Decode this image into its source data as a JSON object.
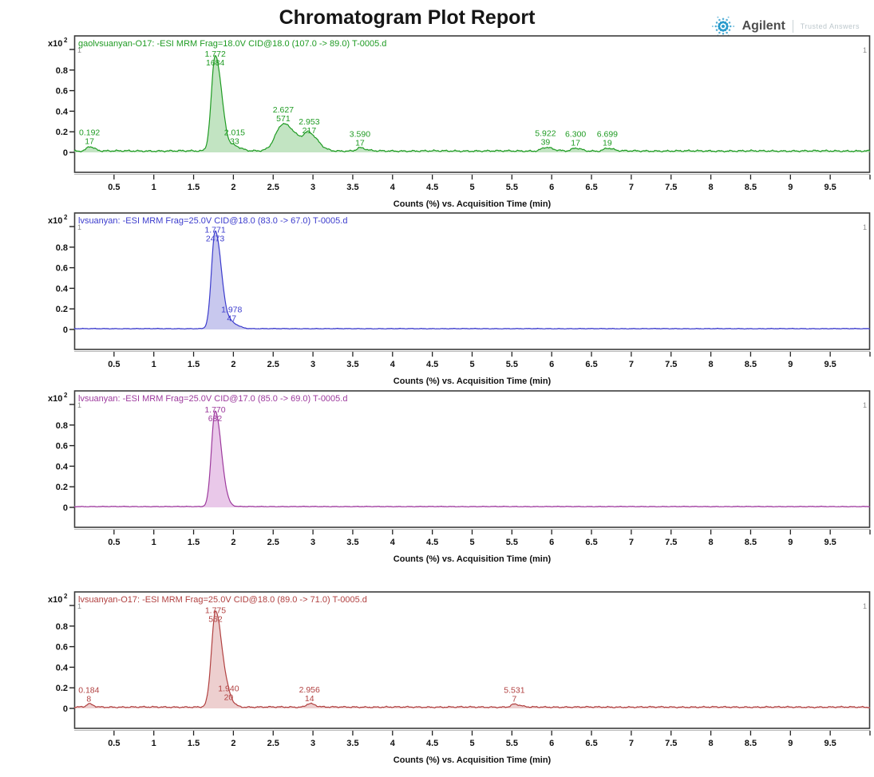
{
  "report": {
    "title": "Chromatogram Plot Report",
    "brand": {
      "name": "Agilent",
      "tagline": "Trusted Answers",
      "accent": "#2a9bcc"
    }
  },
  "axis": {
    "x_title": "Counts (%) vs. Acquisition Time (min)",
    "x_range": [
      0,
      10
    ],
    "x_tick_step": 0.5,
    "x_tick_labels": [
      "0.5",
      "1",
      "1.5",
      "2",
      "2.5",
      "3",
      "3.5",
      "4",
      "4.5",
      "5",
      "5.5",
      "6",
      "6.5",
      "7",
      "7.5",
      "8",
      "8.5",
      "9",
      "9.5"
    ],
    "y_scale_base": "x10",
    "y_scale_exp": "2",
    "y_tick_labels": [
      "0.8",
      "0.6",
      "0.4",
      "0.2",
      "0"
    ],
    "y_max_inner_label": "1",
    "y_range": [
      0,
      1
    ],
    "grid": false
  },
  "chart_data": [
    {
      "type": "line",
      "title": "gaolvsuanyan-O17: -ESI MRM Frag=18.0V CID@18.0 (107.0 -> 89.0) T-0005.d",
      "color": "#1f9b23",
      "fill": "#8fce8f",
      "ylim": [
        0,
        1
      ],
      "y_scale": "x10^2",
      "baseline": 0.014,
      "noise_amp": 0.011,
      "peaks": [
        {
          "rt_label": "0.192",
          "counts_label": "17",
          "rt": 0.192,
          "counts": 17,
          "height": 0.045,
          "sigma": 0.035
        },
        {
          "rt_label": "1.772",
          "counts_label": "1684",
          "rt": 1.772,
          "counts": 1684,
          "height": 0.93,
          "sigma": 0.048
        },
        {
          "rt_label": "2.015",
          "counts_label": "33",
          "rt": 2.015,
          "counts": 33,
          "height": 0.045,
          "sigma": 0.045
        },
        {
          "rt_label": "2.627",
          "counts_label": "571",
          "rt": 2.627,
          "counts": 571,
          "height": 0.265,
          "sigma": 0.095
        },
        {
          "rt_label": "2.953",
          "counts_label": "217",
          "rt": 2.953,
          "counts": 217,
          "height": 0.15,
          "sigma": 0.065
        },
        {
          "rt_label": "3.590",
          "counts_label": "17",
          "rt": 3.59,
          "counts": 17,
          "height": 0.03,
          "sigma": 0.04
        },
        {
          "rt_label": "5.922",
          "counts_label": "39",
          "rt": 5.922,
          "counts": 39,
          "height": 0.035,
          "sigma": 0.05
        },
        {
          "rt_label": "6.300",
          "counts_label": "17",
          "rt": 6.3,
          "counts": 17,
          "height": 0.028,
          "sigma": 0.04
        },
        {
          "rt_label": "6.699",
          "counts_label": "19",
          "rt": 6.699,
          "counts": 19,
          "height": 0.028,
          "sigma": 0.04
        }
      ]
    },
    {
      "type": "line",
      "title": "lvsuanyan: -ESI MRM Frag=25.0V CID@18.0 (83.0 -> 67.0) T-0005.d",
      "color": "#3c3ccd",
      "fill": "#9a9ae0",
      "ylim": [
        0,
        1
      ],
      "y_scale": "x10^2",
      "baseline": 0.008,
      "noise_amp": 0.004,
      "peaks": [
        {
          "rt_label": "1.771",
          "counts_label": "2473",
          "rt": 1.771,
          "counts": 2473,
          "height": 0.95,
          "sigma": 0.046
        },
        {
          "rt_label": "1.978",
          "counts_label": "47",
          "rt": 1.978,
          "counts": 47,
          "height": 0.05,
          "sigma": 0.05
        }
      ]
    },
    {
      "type": "line",
      "title": "lvsuanyan: -ESI MRM Frag=25.0V CID@17.0 (85.0 -> 69.0) T-0005.d",
      "color": "#9d3a9d",
      "fill": "#d79ad7",
      "ylim": [
        0,
        1
      ],
      "y_scale": "x10^2",
      "baseline": 0.008,
      "noise_amp": 0.004,
      "peaks": [
        {
          "rt_label": "1.770",
          "counts_label": "682",
          "rt": 1.77,
          "counts": 682,
          "height": 0.93,
          "sigma": 0.046
        }
      ]
    },
    {
      "type": "line",
      "title": "lvsuanyan-O17: -ESI MRM Frag=25.0V CID@18.0 (89.0 -> 71.0) T-0005.d",
      "color": "#b14141",
      "fill": "#dfa8a8",
      "ylim": [
        0,
        1
      ],
      "y_scale": "x10^2",
      "baseline": 0.013,
      "noise_amp": 0.009,
      "peaks": [
        {
          "rt_label": "0.184",
          "counts_label": "8",
          "rt": 0.184,
          "counts": 8,
          "height": 0.03,
          "sigma": 0.03
        },
        {
          "rt_label": "1.775",
          "counts_label": "562",
          "rt": 1.775,
          "counts": 562,
          "height": 0.93,
          "sigma": 0.05
        },
        {
          "rt_label": "1.940",
          "counts_label": "20",
          "rt": 1.94,
          "counts": 20,
          "height": 0.045,
          "sigma": 0.04
        },
        {
          "rt_label": "2.956",
          "counts_label": "14",
          "rt": 2.956,
          "counts": 14,
          "height": 0.035,
          "sigma": 0.04
        },
        {
          "rt_label": "5.531",
          "counts_label": "7",
          "rt": 5.531,
          "counts": 7,
          "height": 0.028,
          "sigma": 0.04
        }
      ]
    }
  ]
}
